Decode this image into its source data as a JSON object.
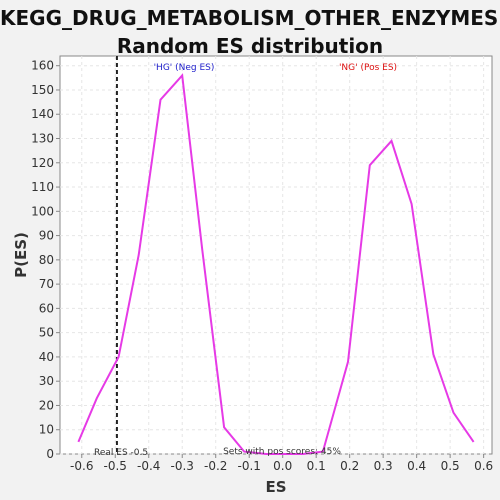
{
  "colors": {
    "line": "#e63ae6",
    "neg_label": "#2222cc",
    "pos_label": "#dd1111",
    "real_es_line": "#222222",
    "plot_bg": "#ffffff",
    "grid": "#e6e6e6"
  },
  "chart_data": {
    "type": "line",
    "title_line1": "KEGG_DRUG_METABOLISM_OTHER_ENZYMES:",
    "title_line2": "Random ES distribution",
    "xlabel": "ES",
    "ylabel": "P(ES)",
    "xlim": [
      -0.665,
      0.625
    ],
    "ylim": [
      0,
      164
    ],
    "xticks": [
      -0.6,
      -0.5,
      -0.4,
      -0.3,
      -0.2,
      -0.1,
      0.0,
      0.1,
      0.2,
      0.3,
      0.4,
      0.5,
      0.6
    ],
    "xtick_labels": [
      "-0.6",
      "-0.5",
      "-0.4",
      "-0.3",
      "-0.2",
      "-0.1",
      "0.0",
      "0.1",
      "0.2",
      "0.3",
      "0.4",
      "0.5",
      "0.6"
    ],
    "yticks": [
      0,
      10,
      20,
      30,
      40,
      50,
      60,
      70,
      80,
      90,
      100,
      110,
      120,
      130,
      140,
      150,
      160
    ],
    "grid": true,
    "series": [
      {
        "x": [
          -0.61,
          -0.555,
          -0.49,
          -0.43,
          -0.365,
          -0.3,
          -0.24,
          -0.175,
          -0.115,
          -0.05,
          0.0,
          0.06,
          0.12,
          0.195,
          0.26,
          0.325,
          0.385,
          0.45,
          0.51,
          0.57
        ],
        "y": [
          5,
          23,
          40,
          82,
          146,
          156,
          84,
          11,
          1,
          0,
          0,
          0,
          1,
          38,
          119,
          129,
          103,
          41,
          17,
          5
        ]
      }
    ],
    "annotations": {
      "neg_label": "'HG' (Neg ES)",
      "pos_label": "'NG' (Pos ES)",
      "real_es_text": "Real ES -0.5",
      "real_es_value": -0.495,
      "sets_pos_text": "Sets with pos scores: 45%"
    }
  }
}
